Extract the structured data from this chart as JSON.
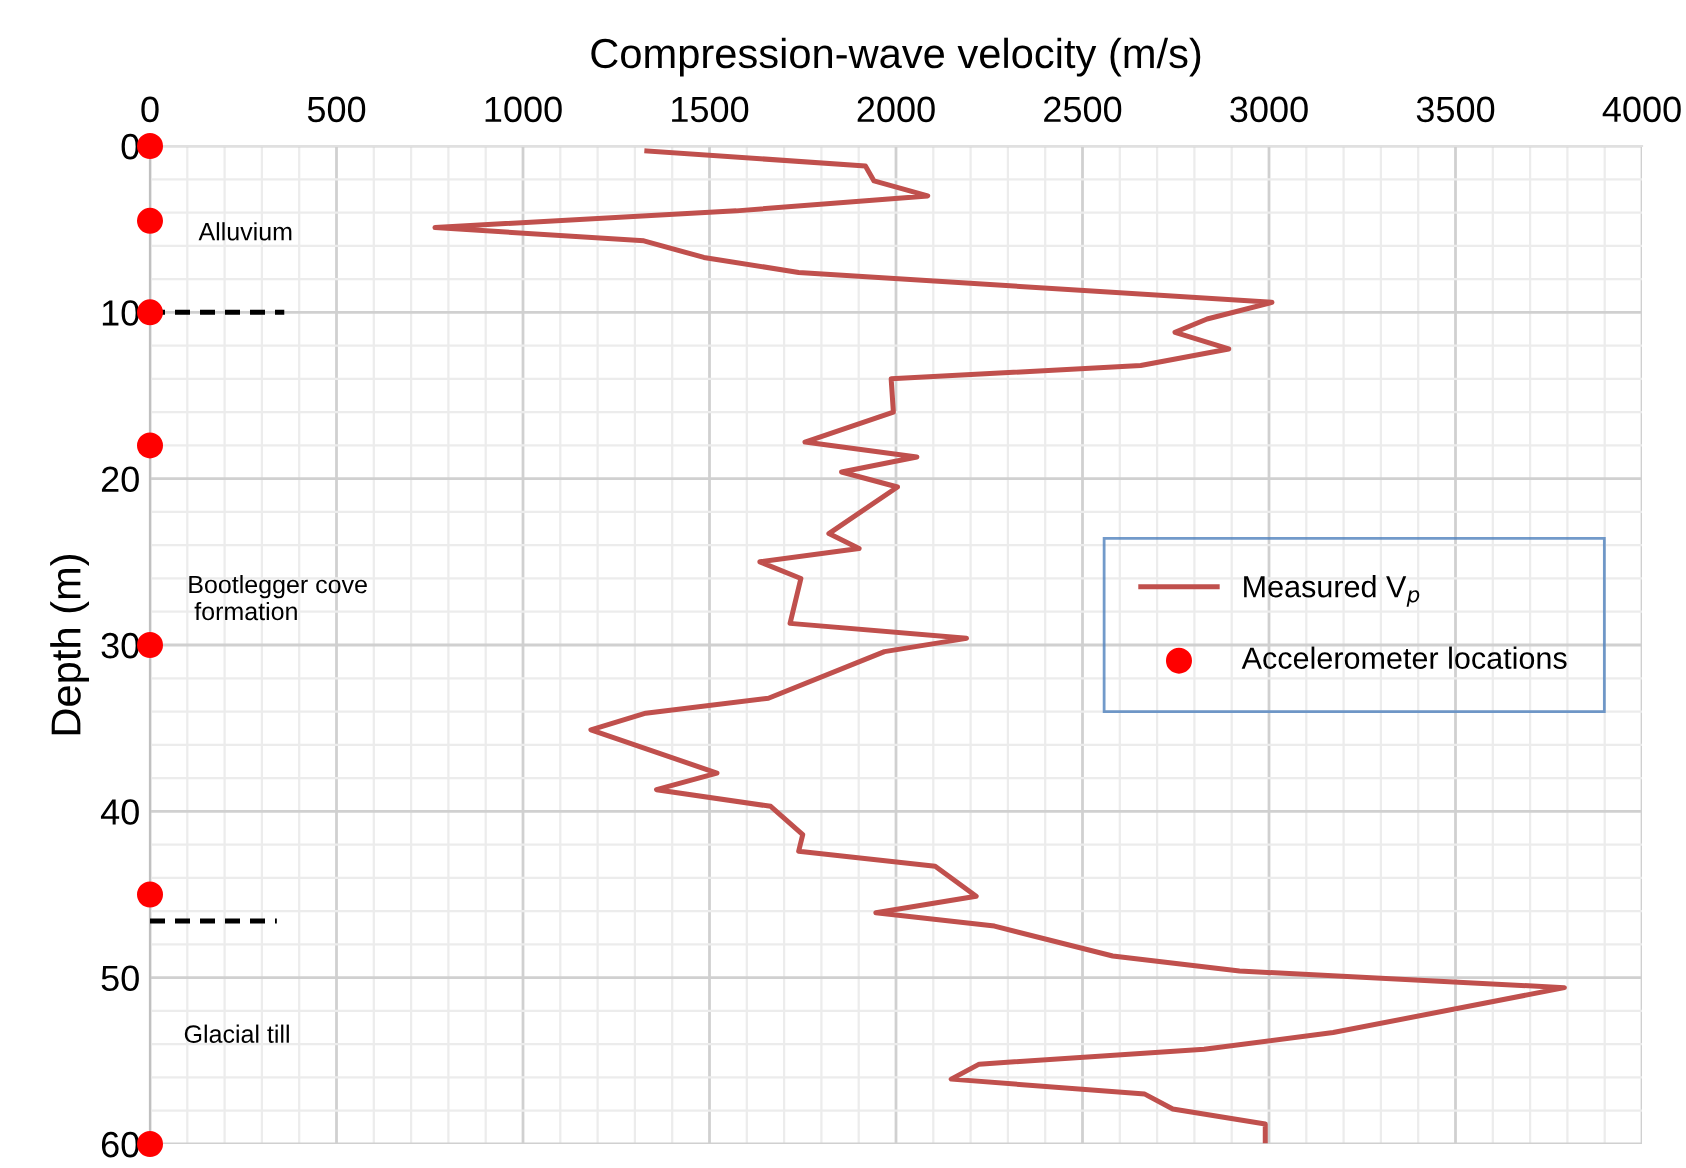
{
  "chart_data": {
    "type": "line",
    "xlabel": "Compression-wave velocity (m/s)",
    "ylabel": "Depth (m)",
    "xlim": [
      0,
      4000
    ],
    "ylim": [
      60,
      0
    ],
    "xticks": [
      0,
      {
        "value": 100,
        "label": null
      },
      {
        "value": 200,
        "label": null
      },
      {
        "value": 300,
        "label": null
      },
      {
        "value": 400,
        "label": null
      },
      500,
      {
        "value": 600,
        "label": null
      },
      {
        "value": 700,
        "label": null
      },
      {
        "value": 800,
        "label": null
      },
      {
        "value": 900,
        "label": null
      },
      1000,
      {
        "value": 1100,
        "label": null
      },
      {
        "value": 1200,
        "label": null
      },
      {
        "value": 1300,
        "label": null
      },
      {
        "value": 1400,
        "label": null
      },
      1500,
      {
        "value": 1600,
        "label": null
      },
      {
        "value": 1700,
        "label": null
      },
      {
        "value": 1800,
        "label": null
      },
      {
        "value": 1900,
        "label": null
      },
      2000,
      {
        "value": 2100,
        "label": null
      },
      {
        "value": 2200,
        "label": null
      },
      {
        "value": 2300,
        "label": null
      },
      {
        "value": 2400,
        "label": null
      },
      2500,
      {
        "value": 2600,
        "label": null
      },
      {
        "value": 2700,
        "label": null
      },
      {
        "value": 2800,
        "label": null
      },
      {
        "value": 2900,
        "label": null
      },
      3000,
      {
        "value": 3100,
        "label": null
      },
      {
        "value": 3200,
        "label": null
      },
      {
        "value": 3300,
        "label": null
      },
      {
        "value": 3400,
        "label": null
      },
      3500,
      {
        "value": 3600,
        "label": null
      },
      {
        "value": 3700,
        "label": null
      },
      {
        "value": 3800,
        "label": null
      },
      {
        "value": 3900,
        "label": null
      },
      4000
    ],
    "yticks": [
      0,
      {
        "value": 2,
        "label": null
      },
      {
        "value": 4,
        "label": null
      },
      {
        "value": 6,
        "label": null
      },
      {
        "value": 8,
        "label": null
      },
      10,
      {
        "value": 12,
        "label": null
      },
      {
        "value": 14,
        "label": null
      },
      {
        "value": 16,
        "label": null
      },
      {
        "value": 18,
        "label": null
      },
      20,
      {
        "value": 22,
        "label": null
      },
      {
        "value": 24,
        "label": null
      },
      {
        "value": 26,
        "label": null
      },
      {
        "value": 28,
        "label": null
      },
      30,
      {
        "value": 32,
        "label": null
      },
      {
        "value": 34,
        "label": null
      },
      {
        "value": 36,
        "label": null
      },
      {
        "value": 38,
        "label": null
      },
      40,
      {
        "value": 42,
        "label": null
      },
      {
        "value": 44,
        "label": null
      },
      {
        "value": 46,
        "label": null
      },
      {
        "value": 48,
        "label": null
      },
      50,
      {
        "value": 52,
        "label": null
      },
      {
        "value": 54,
        "label": null
      },
      {
        "value": 56,
        "label": null
      },
      {
        "value": 58,
        "label": null
      },
      60
    ],
    "grid": true,
    "legend": "right",
    "series": [
      {
        "name": "Measured V$_{p}$",
        "color": "#c0504d",
        "marker": "none",
        "line_style": "solid",
        "x": [
          1332,
          1918,
          1941,
          2085,
          1572,
          764,
          1324,
          1485,
          1739,
          3008,
          2834,
          2748,
          2892,
          2656,
          1987,
          1993,
          1756,
          2056,
          1854,
          2004,
          1820,
          1901,
          1635,
          1745,
          1716,
          2189,
          1969,
          1658,
          1329,
          1182,
          1520,
          1358,
          1664,
          1750,
          1739,
          2105,
          2215,
          1946,
          2264,
          2581,
          2921,
          3792,
          3172,
          2826,
          2223,
          2148,
          2667,
          2742,
          2990,
          2990
        ],
        "values": [
          0.3,
          1.2,
          2.1,
          3.0,
          3.9,
          4.9,
          5.7,
          6.7,
          7.6,
          9.4,
          10.4,
          11.2,
          12.2,
          13.2,
          14.0,
          16.0,
          17.8,
          18.7,
          19.6,
          20.5,
          23.3,
          24.2,
          25.0,
          26.0,
          28.7,
          29.6,
          30.4,
          33.2,
          34.1,
          35.1,
          37.7,
          38.7,
          39.7,
          41.4,
          42.4,
          43.3,
          45.1,
          46.1,
          46.9,
          48.7,
          49.6,
          50.6,
          53.3,
          54.3,
          55.2,
          56.1,
          57.0,
          57.9,
          58.8,
          59.8
        ]
      },
      {
        "name": "Accelerometer locations",
        "type": "scatter",
        "color": "#ff0000",
        "marker": "circle",
        "x": [
          0,
          0,
          0,
          0,
          0,
          0,
          0
        ],
        "values": [
          0,
          4.5,
          10,
          18,
          30,
          45,
          60
        ]
      },
      {
        "type": "line",
        "color": "#000000",
        "marker": "none",
        "line_style": "dashed",
        "x": [
          0,
          360
        ],
        "values": [
          10,
          10
        ]
      },
      {
        "type": "line",
        "color": "#000000",
        "marker": "none",
        "line_style": "dashed",
        "x": [
          0,
          340
        ],
        "values": [
          46.6,
          46.6
        ]
      }
    ],
    "annotations": [
      "Alluvium",
      "Bootlegger cove\n formation",
      "Glacial till"
    ]
  }
}
